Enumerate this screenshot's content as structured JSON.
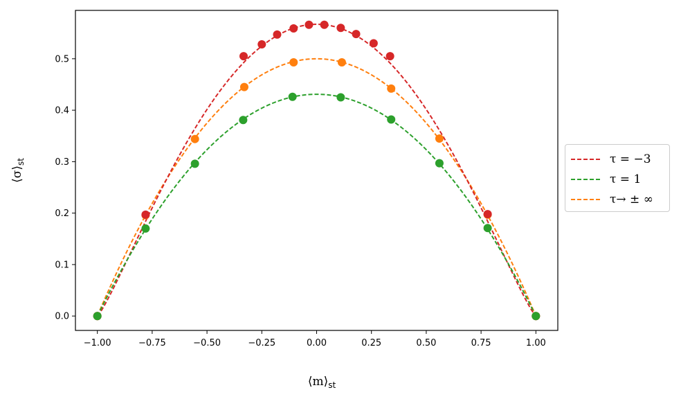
{
  "chart_data": {
    "type": "line",
    "title": "",
    "xlabel": {
      "main": "⟨m⟩",
      "sub": "st"
    },
    "ylabel": {
      "main": "⟨σ⟩",
      "sub": "st"
    },
    "xlim": [
      -1.1,
      1.1
    ],
    "ylim": [
      -0.028,
      0.594
    ],
    "xticks": [
      -1.0,
      -0.75,
      -0.5,
      -0.25,
      0.0,
      0.25,
      0.5,
      0.75,
      1.0
    ],
    "xtick_labels": [
      "−1.00",
      "−0.75",
      "−0.50",
      "−0.25",
      "0.00",
      "0.25",
      "0.50",
      "0.75",
      "1.00"
    ],
    "yticks": [
      0.0,
      0.1,
      0.2,
      0.3,
      0.4,
      0.5
    ],
    "ytick_labels": [
      "0.0",
      "0.1",
      "0.2",
      "0.3",
      "0.4",
      "0.5"
    ],
    "legend_position": "center-right-outside",
    "series": [
      {
        "name": "τ = −3",
        "color": "#d62728",
        "peak": 0.567,
        "shape_exponent": 1.2,
        "markers": [
          [
            -1.0,
            0.0
          ],
          [
            -0.78,
            0.197
          ],
          [
            -0.333,
            0.505
          ],
          [
            -0.25,
            0.528
          ],
          [
            -0.18,
            0.547
          ],
          [
            -0.105,
            0.559
          ],
          [
            -0.035,
            0.566
          ],
          [
            0.035,
            0.566
          ],
          [
            0.11,
            0.56
          ],
          [
            0.18,
            0.548
          ],
          [
            0.26,
            0.53
          ],
          [
            0.335,
            0.505
          ],
          [
            0.78,
            0.198
          ],
          [
            1.0,
            0.0
          ]
        ]
      },
      {
        "name": "τ = 1",
        "color": "#2ca02c",
        "peak": 0.431,
        "shape_exponent": 1.0,
        "markers": [
          [
            -1.0,
            0.0
          ],
          [
            -0.78,
            0.17
          ],
          [
            -0.555,
            0.296
          ],
          [
            -0.335,
            0.381
          ],
          [
            -0.11,
            0.426
          ],
          [
            0.11,
            0.425
          ],
          [
            0.34,
            0.382
          ],
          [
            0.56,
            0.297
          ],
          [
            0.78,
            0.171
          ],
          [
            1.0,
            0.0
          ]
        ]
      },
      {
        "name": "τ→ ± ∞",
        "color": "#ff7f0e",
        "peak": 0.5,
        "shape_exponent": 1.0,
        "markers": [
          [
            -1.0,
            0.0
          ],
          [
            -0.78,
            0.196
          ],
          [
            -0.555,
            0.344
          ],
          [
            -0.33,
            0.445
          ],
          [
            -0.105,
            0.493
          ],
          [
            0.115,
            0.493
          ],
          [
            0.34,
            0.442
          ],
          [
            0.56,
            0.345
          ],
          [
            0.78,
            0.197
          ],
          [
            1.0,
            0.0
          ]
        ]
      }
    ],
    "draw_order": [
      2,
      0,
      1
    ]
  }
}
